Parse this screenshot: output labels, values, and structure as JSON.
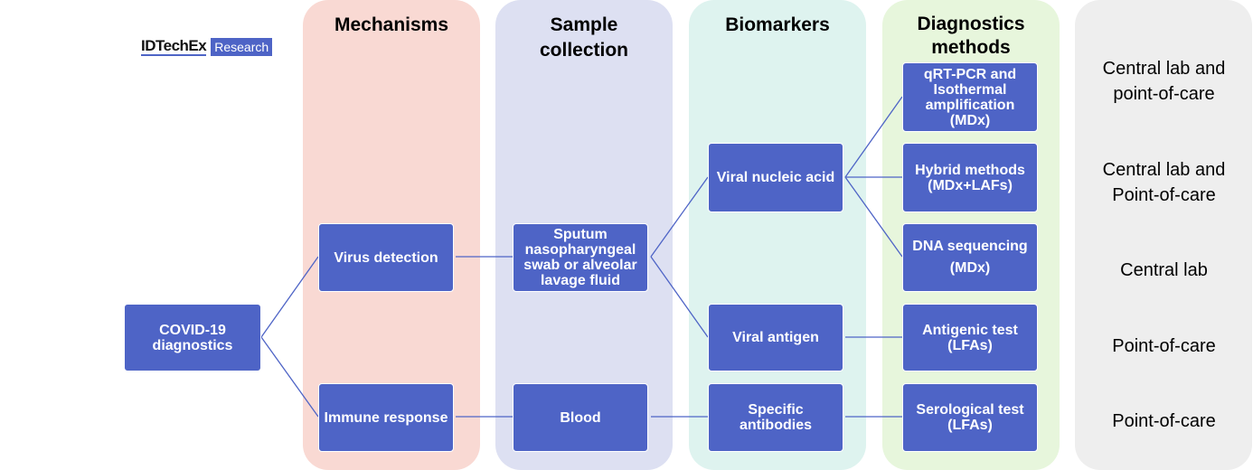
{
  "logo": {
    "name": "IDTechEx",
    "tag": "Research"
  },
  "columns": [
    {
      "title": "Mechanisms",
      "color": "#f9d9d3"
    },
    {
      "title": "Sample collection",
      "color": "#dde0f2"
    },
    {
      "title": "Biomarkers",
      "color": "#def3ef"
    },
    {
      "title": "Diagnostics methods",
      "color": "#e7f6dc"
    },
    {
      "title": "",
      "color": "#eeeeee"
    }
  ],
  "nodes": {
    "covid": "COVID-19 diagnostics",
    "virus": "Virus detection",
    "immune": "Immune response",
    "sputum": "Sputum nasopharyngeal swab or alveolar lavage fluid",
    "blood": "Blood",
    "vna": "Viral nucleic acid",
    "antigen": "Viral antigen",
    "antibodies": "Specific antibodies",
    "qrt": "qRT-PCR and Isothermal amplification (MDx)",
    "hybrid": "Hybrid methods (MDx+LAFs)",
    "dna": "DNA sequencing (MDx)",
    "antigenic": "Antigenic test (LFAs)",
    "sero": "Serological test (LFAs)"
  },
  "settings": [
    "Central lab and point-of-care",
    "Central lab and Point-of-care",
    "Central lab",
    "Point-of-care",
    "Point-of-care"
  ],
  "colors": {
    "box": "#4e64c6",
    "line": "#4e64c6"
  }
}
